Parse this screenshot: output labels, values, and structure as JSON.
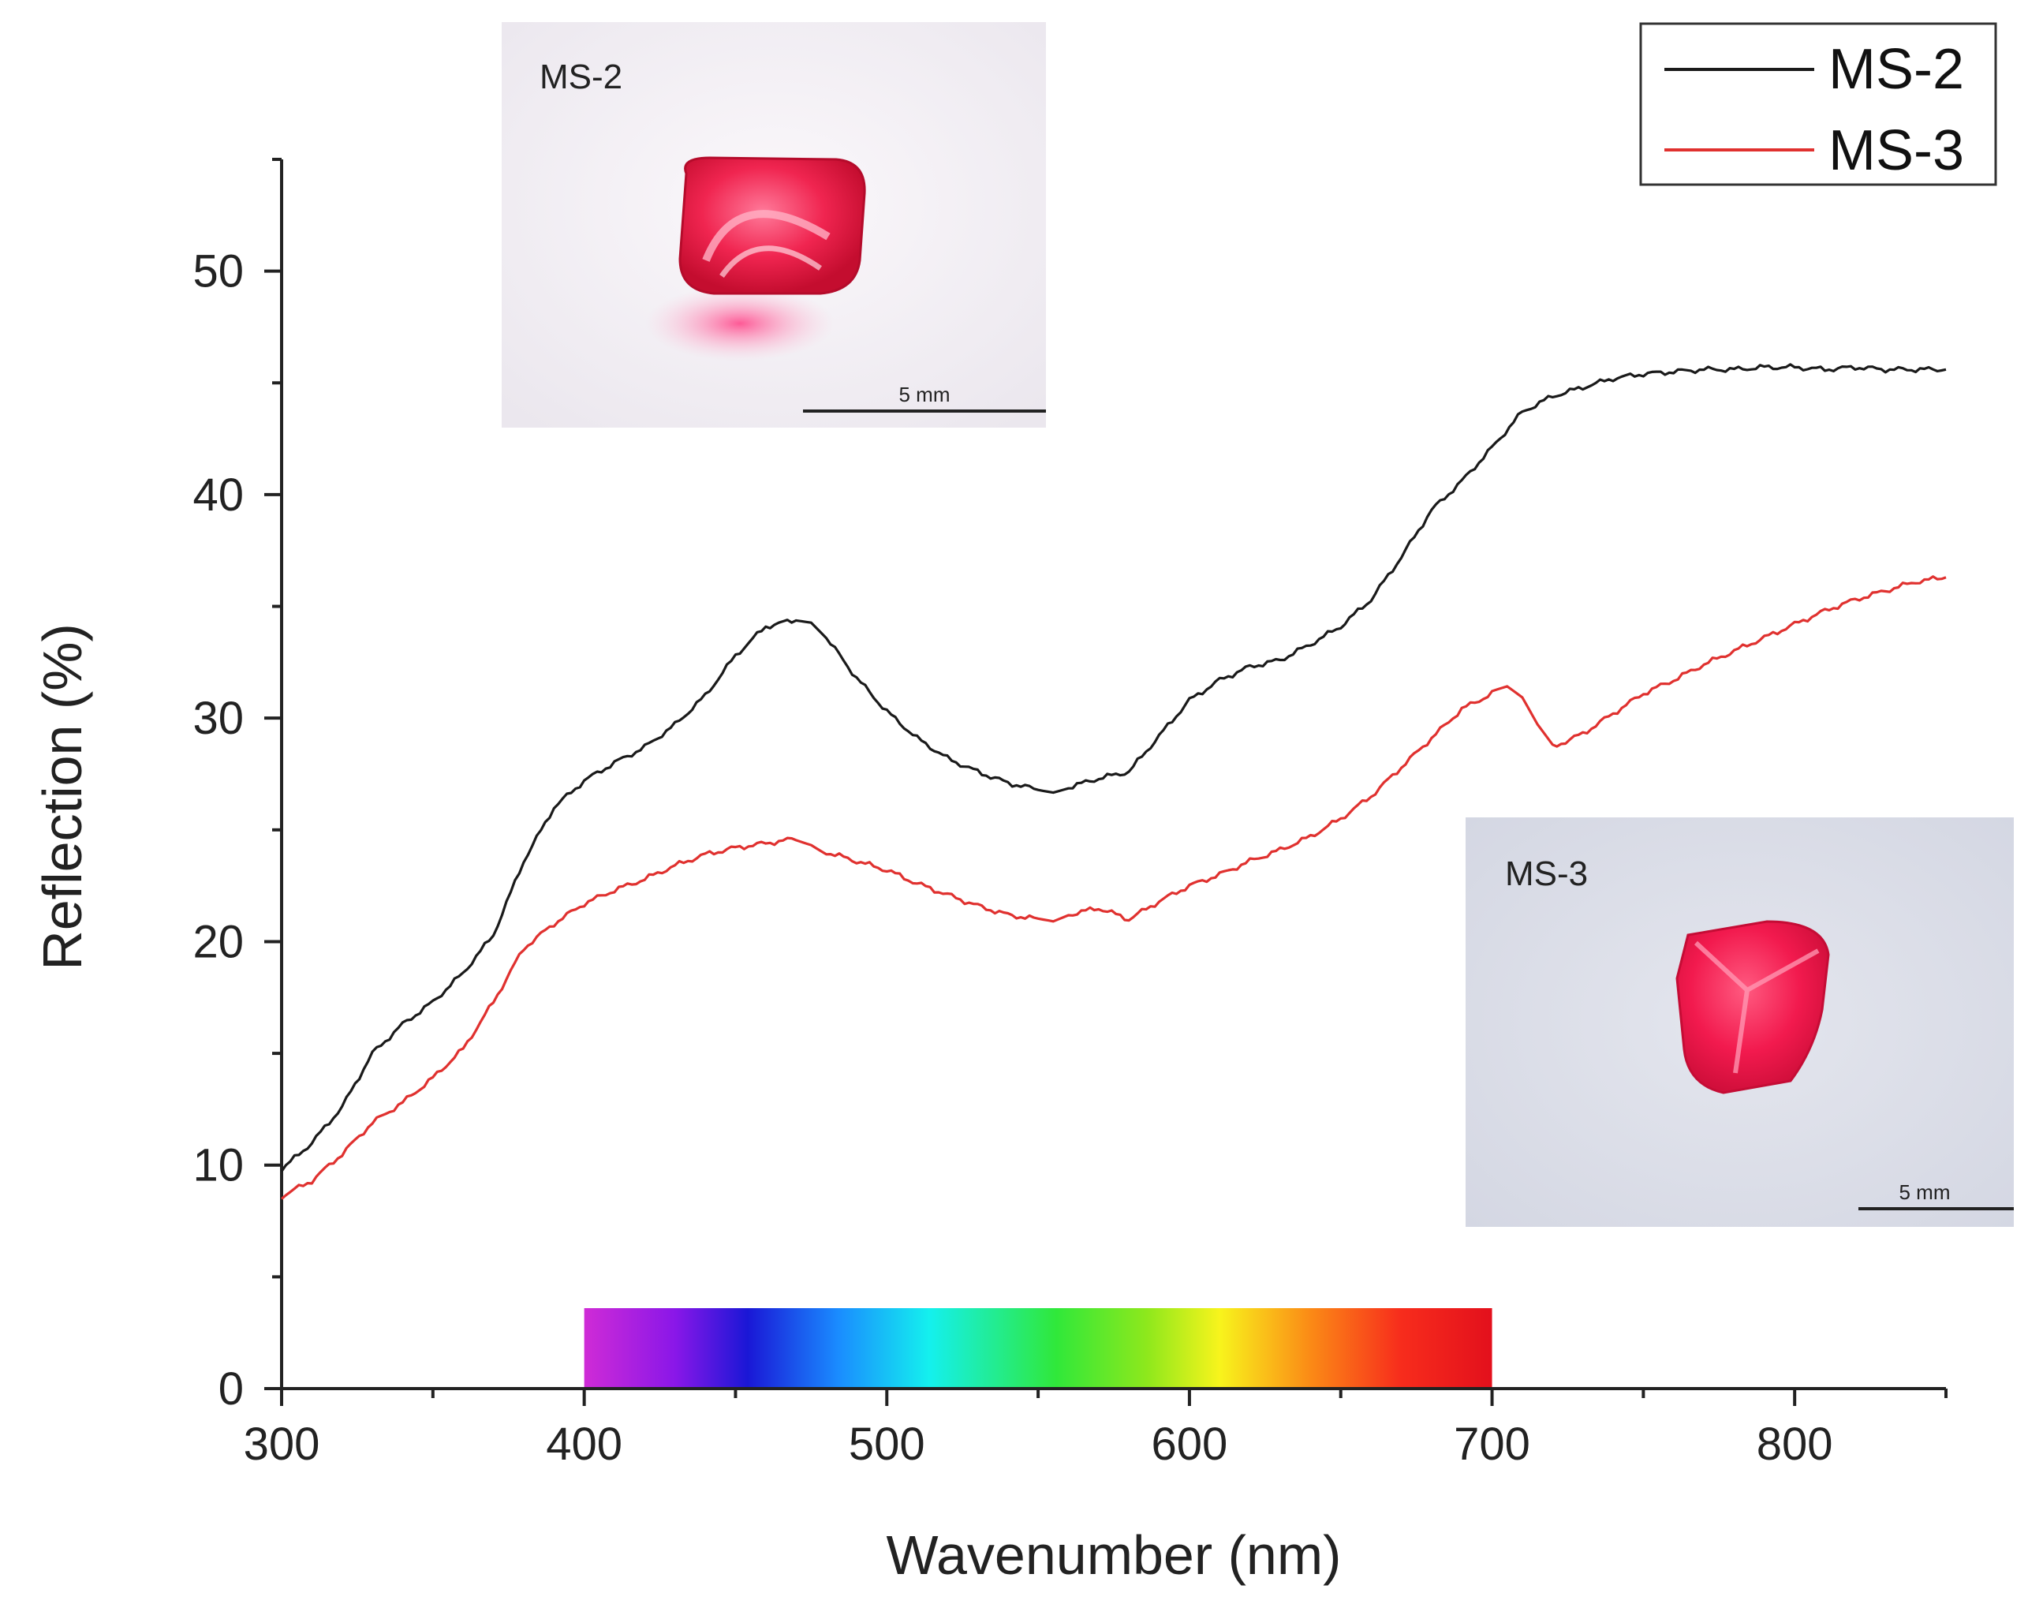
{
  "chart_data": {
    "type": "line",
    "title": "",
    "xlabel": "Wavenumber (nm)",
    "ylabel": "Reflection (%)",
    "xlim": [
      300,
      850
    ],
    "ylim": [
      0,
      55
    ],
    "xticks": [
      300,
      400,
      500,
      600,
      700,
      800
    ],
    "yticks": [
      0,
      10,
      20,
      30,
      40,
      50
    ],
    "grid": false,
    "legend_position": "top-right",
    "series": [
      {
        "name": "MS-2",
        "color": "#1a1a1a",
        "points": [
          [
            300,
            9.8
          ],
          [
            310,
            11.0
          ],
          [
            320,
            12.6
          ],
          [
            330,
            15.0
          ],
          [
            340,
            16.3
          ],
          [
            350,
            17.3
          ],
          [
            360,
            18.6
          ],
          [
            370,
            20.3
          ],
          [
            380,
            23.6
          ],
          [
            390,
            26.0
          ],
          [
            400,
            27.2
          ],
          [
            410,
            28.0
          ],
          [
            420,
            28.7
          ],
          [
            430,
            29.7
          ],
          [
            440,
            31.0
          ],
          [
            450,
            32.8
          ],
          [
            460,
            34.1
          ],
          [
            470,
            34.4
          ],
          [
            475,
            34.3
          ],
          [
            480,
            33.6
          ],
          [
            490,
            31.8
          ],
          [
            500,
            30.3
          ],
          [
            510,
            29.1
          ],
          [
            520,
            28.2
          ],
          [
            530,
            27.6
          ],
          [
            540,
            27.1
          ],
          [
            550,
            26.8
          ],
          [
            555,
            26.7
          ],
          [
            560,
            26.9
          ],
          [
            570,
            27.3
          ],
          [
            580,
            27.6
          ],
          [
            590,
            29.2
          ],
          [
            600,
            30.8
          ],
          [
            610,
            31.7
          ],
          [
            620,
            32.3
          ],
          [
            630,
            32.6
          ],
          [
            640,
            33.3
          ],
          [
            650,
            34.1
          ],
          [
            660,
            35.3
          ],
          [
            670,
            37.2
          ],
          [
            680,
            39.3
          ],
          [
            690,
            40.6
          ],
          [
            700,
            42.1
          ],
          [
            710,
            43.7
          ],
          [
            720,
            44.4
          ],
          [
            730,
            44.8
          ],
          [
            740,
            45.2
          ],
          [
            750,
            45.4
          ],
          [
            760,
            45.5
          ],
          [
            770,
            45.6
          ],
          [
            780,
            45.6
          ],
          [
            790,
            45.7
          ],
          [
            800,
            45.7
          ],
          [
            810,
            45.6
          ],
          [
            820,
            45.7
          ],
          [
            830,
            45.6
          ],
          [
            840,
            45.6
          ],
          [
            850,
            45.6
          ]
        ]
      },
      {
        "name": "MS-3",
        "color": "#e0312f",
        "points": [
          [
            300,
            8.6
          ],
          [
            310,
            9.3
          ],
          [
            320,
            10.5
          ],
          [
            330,
            11.9
          ],
          [
            340,
            12.8
          ],
          [
            350,
            13.9
          ],
          [
            360,
            15.2
          ],
          [
            370,
            17.3
          ],
          [
            380,
            19.7
          ],
          [
            390,
            20.8
          ],
          [
            400,
            21.7
          ],
          [
            410,
            22.3
          ],
          [
            420,
            22.8
          ],
          [
            430,
            23.4
          ],
          [
            440,
            23.9
          ],
          [
            450,
            24.2
          ],
          [
            460,
            24.4
          ],
          [
            470,
            24.6
          ],
          [
            475,
            24.4
          ],
          [
            480,
            24.0
          ],
          [
            490,
            23.6
          ],
          [
            500,
            23.2
          ],
          [
            510,
            22.6
          ],
          [
            520,
            22.1
          ],
          [
            530,
            21.6
          ],
          [
            540,
            21.2
          ],
          [
            550,
            21.0
          ],
          [
            555,
            20.9
          ],
          [
            560,
            21.2
          ],
          [
            570,
            21.5
          ],
          [
            580,
            21.0
          ],
          [
            590,
            21.8
          ],
          [
            600,
            22.5
          ],
          [
            610,
            23.0
          ],
          [
            620,
            23.6
          ],
          [
            630,
            24.1
          ],
          [
            640,
            24.7
          ],
          [
            650,
            25.5
          ],
          [
            660,
            26.5
          ],
          [
            670,
            27.8
          ],
          [
            680,
            29.1
          ],
          [
            690,
            30.4
          ],
          [
            700,
            31.1
          ],
          [
            705,
            31.3
          ],
          [
            710,
            30.8
          ],
          [
            715,
            29.6
          ],
          [
            720,
            28.7
          ],
          [
            730,
            29.3
          ],
          [
            740,
            30.2
          ],
          [
            750,
            31.1
          ],
          [
            760,
            31.7
          ],
          [
            770,
            32.4
          ],
          [
            780,
            33.0
          ],
          [
            790,
            33.6
          ],
          [
            800,
            34.2
          ],
          [
            810,
            34.8
          ],
          [
            820,
            35.3
          ],
          [
            830,
            35.7
          ],
          [
            840,
            36.1
          ],
          [
            850,
            36.3
          ]
        ]
      }
    ],
    "spectrum_bar": {
      "x_start": 400,
      "x_end": 700,
      "y_top": 3.6
    },
    "insets": [
      {
        "label": "MS-2",
        "scale": "5 mm"
      },
      {
        "label": "MS-3",
        "scale": "5 mm"
      }
    ]
  }
}
